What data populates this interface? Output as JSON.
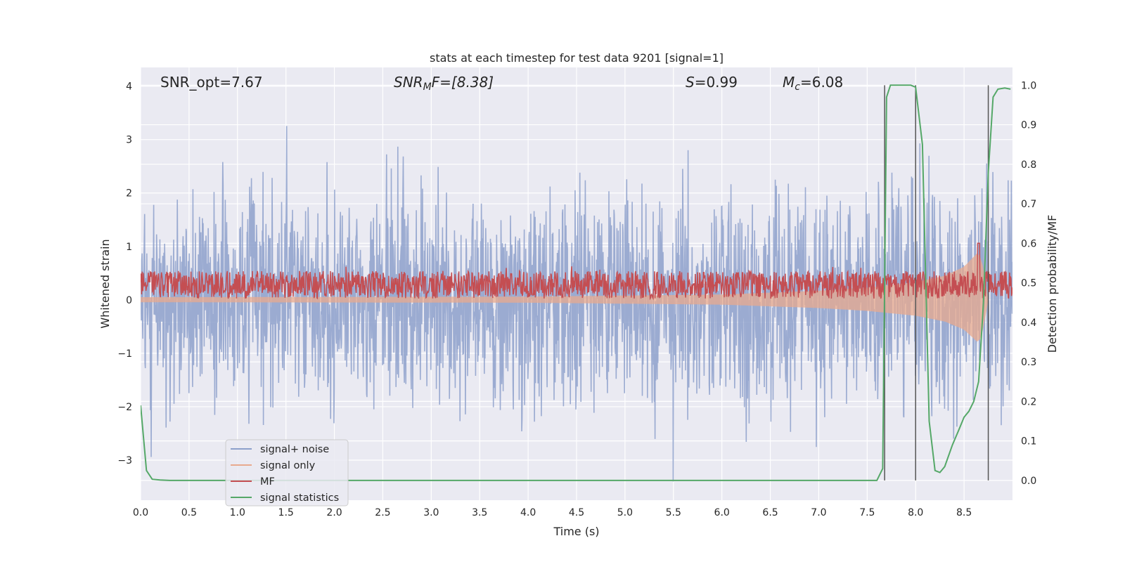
{
  "chart_data": {
    "type": "line",
    "title": "stats at each timestep for test data 9201 [signal=1]",
    "xlabel": "Time (s)",
    "ylabel_left": "Whitened strain",
    "ylabel_right": "Detection probability/MF",
    "xlim": [
      0,
      9
    ],
    "ylim_left": [
      -3.75,
      4.35
    ],
    "ylim_right": [
      -0.05,
      1.045
    ],
    "x_ticks": [
      "0.0",
      "0.5",
      "1.0",
      "1.5",
      "2.0",
      "2.5",
      "3.0",
      "3.5",
      "4.0",
      "4.5",
      "5.0",
      "5.5",
      "6.0",
      "6.5",
      "7.0",
      "7.5",
      "8.0",
      "8.5"
    ],
    "y_ticks_left": [
      "4",
      "3",
      "2",
      "1",
      "0",
      "−1",
      "−2",
      "−3"
    ],
    "y_ticks_right": [
      "1.0",
      "0.9",
      "0.8",
      "0.7",
      "0.6",
      "0.5",
      "0.4",
      "0.3",
      "0.2",
      "0.1",
      "0.0"
    ],
    "grid": true,
    "legend_position": "lower-left",
    "annotations": {
      "snr_opt": "SNR_opt=7.67",
      "snr_mf_italic": "SNR",
      "snr_mf_sub": "M",
      "snr_mf_rest": "F=[8.38]",
      "s_italic": "S",
      "s_rest": "=0.99",
      "mc_italic": "M",
      "mc_sub": "c",
      "mc_rest": "=6.08"
    },
    "vertical_lines_x": [
      7.68,
      8.0,
      8.75
    ],
    "series": [
      {
        "name": "signal+ noise",
        "axis": "left",
        "color": "#8da0cb",
        "description_values": "noise in approx [-3.4, 4.0]"
      },
      {
        "name": "signal only",
        "axis": "left",
        "color": "#e8a98e",
        "values_envelope": [
          [
            0,
            0.05
          ],
          [
            4,
            0.06
          ],
          [
            6,
            0.1
          ],
          [
            7,
            0.17
          ],
          [
            7.5,
            0.23
          ],
          [
            8,
            0.33
          ],
          [
            8.3,
            0.45
          ],
          [
            8.5,
            0.62
          ],
          [
            8.65,
            0.9
          ],
          [
            8.7,
            0.6
          ],
          [
            8.75,
            0
          ]
        ]
      },
      {
        "name": "MF",
        "axis": "right",
        "color": "#c44e52",
        "values_range": [
          0.46,
          0.53
        ],
        "peak": [
          8.65,
          0.6
        ]
      },
      {
        "name": "signal statistics",
        "axis": "right",
        "color": "#55a868",
        "x": [
          0.0,
          0.06,
          0.12,
          0.2,
          0.3,
          7.6,
          7.66,
          7.7,
          7.74,
          7.78,
          7.85,
          7.95,
          8.0,
          8.07,
          8.14,
          8.2,
          8.25,
          8.3,
          8.38,
          8.45,
          8.5,
          8.55,
          8.6,
          8.65,
          8.7,
          8.75,
          8.8,
          8.85,
          8.92,
          8.98
        ],
        "y": [
          0.19,
          0.025,
          0.003,
          0.001,
          0.0,
          0.0,
          0.03,
          0.97,
          1.0,
          1.0,
          1.0,
          1.0,
          0.995,
          0.85,
          0.15,
          0.025,
          0.02,
          0.035,
          0.09,
          0.13,
          0.16,
          0.175,
          0.2,
          0.25,
          0.45,
          0.78,
          0.97,
          0.99,
          0.993,
          0.99
        ]
      }
    ]
  }
}
